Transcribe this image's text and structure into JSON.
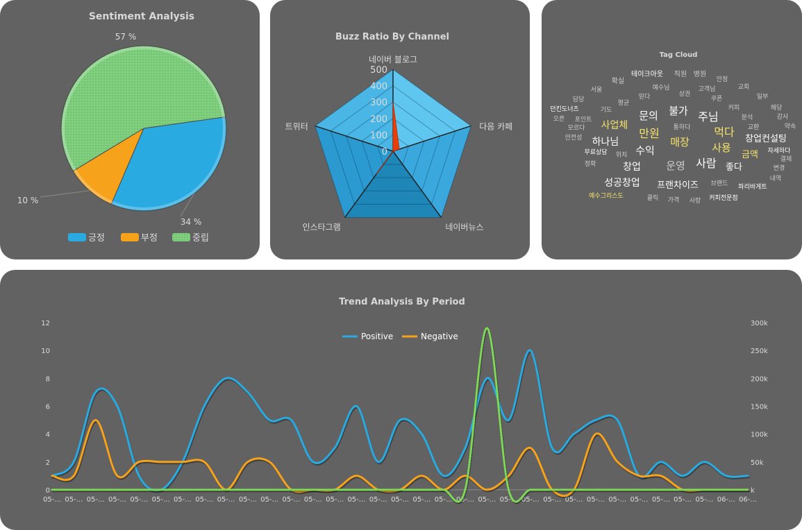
{
  "chart_data": [
    {
      "type": "pie",
      "title": "Sentiment Analysis",
      "slices": [
        {
          "name": "긍정",
          "value": 34,
          "label": "34 %",
          "color": "#29abe2"
        },
        {
          "name": "부정",
          "value": 10,
          "label": "10 %",
          "color": "#f7a21b"
        },
        {
          "name": "중립",
          "value": 57,
          "label": "57 %",
          "color": "#7fcf7f"
        }
      ],
      "legend": [
        "긍정",
        "부정",
        "중립"
      ],
      "legend_position": "bottom"
    },
    {
      "type": "radar",
      "title": "Buzz Ratio By Channel",
      "categories": [
        "네이버 블로그",
        "다음 카페",
        "네이버뉴스",
        "인스타그램",
        "트위터"
      ],
      "values": [
        300,
        40,
        0,
        170,
        0
      ],
      "radial_ticks": [
        "0",
        "100",
        "200",
        "300",
        "400",
        "500"
      ],
      "rmax": 500
    },
    {
      "type": "wordcloud",
      "title": "Tag Cloud",
      "words": [
        {
          "text": "테이크아웃",
          "size": 10,
          "color": "#ffffff"
        },
        {
          "text": "직원",
          "size": 10,
          "color": "#cccccc"
        },
        {
          "text": "병원",
          "size": 10,
          "color": "#cccccc"
        },
        {
          "text": "확실",
          "size": 10,
          "color": "#cccccc"
        },
        {
          "text": "예수님",
          "size": 9,
          "color": "#cccccc"
        },
        {
          "text": "안정",
          "size": 9,
          "color": "#cccccc"
        },
        {
          "text": "서울",
          "size": 9,
          "color": "#cccccc"
        },
        {
          "text": "믿다",
          "size": 9,
          "color": "#cccccc"
        },
        {
          "text": "상권",
          "size": 9,
          "color": "#cccccc"
        },
        {
          "text": "고객님",
          "size": 9,
          "color": "#cccccc"
        },
        {
          "text": "교회",
          "size": 9,
          "color": "#cccccc"
        },
        {
          "text": "담당",
          "size": 9,
          "color": "#cccccc"
        },
        {
          "text": "평균",
          "size": 9,
          "color": "#cccccc"
        },
        {
          "text": "쿠폰",
          "size": 9,
          "color": "#cccccc"
        },
        {
          "text": "일부",
          "size": 9,
          "color": "#cccccc"
        },
        {
          "text": "던킨도너츠",
          "size": 9,
          "color": "#ffffff"
        },
        {
          "text": "기도",
          "size": 9,
          "color": "#cccccc"
        },
        {
          "text": "커피",
          "size": 9,
          "color": "#cccccc"
        },
        {
          "text": "해당",
          "size": 9,
          "color": "#cccccc"
        },
        {
          "text": "오픈",
          "size": 9,
          "color": "#cccccc"
        },
        {
          "text": "포인트",
          "size": 9,
          "color": "#cccccc"
        },
        {
          "text": "문의",
          "size": 15,
          "color": "#ffffff"
        },
        {
          "text": "불가",
          "size": 15,
          "color": "#ffffff"
        },
        {
          "text": "주님",
          "size": 16,
          "color": "#ffffff"
        },
        {
          "text": "분석",
          "size": 9,
          "color": "#cccccc"
        },
        {
          "text": "감사",
          "size": 9,
          "color": "#cccccc"
        },
        {
          "text": "모르다",
          "size": 9,
          "color": "#cccccc"
        },
        {
          "text": "사업체",
          "size": 14,
          "color": "#f5e36a"
        },
        {
          "text": "통하다",
          "size": 9,
          "color": "#cccccc"
        },
        {
          "text": "교환",
          "size": 9,
          "color": "#cccccc"
        },
        {
          "text": "약속",
          "size": 9,
          "color": "#cccccc"
        },
        {
          "text": "안전성",
          "size": 9,
          "color": "#cccccc"
        },
        {
          "text": "만원",
          "size": 16,
          "color": "#f5e36a"
        },
        {
          "text": "먹다",
          "size": 16,
          "color": "#f5e36a"
        },
        {
          "text": "창업컨설팅",
          "size": 13,
          "color": "#ffffff"
        },
        {
          "text": "하나님",
          "size": 14,
          "color": "#ffffff"
        },
        {
          "text": "매장",
          "size": 15,
          "color": "#f5e36a"
        },
        {
          "text": "사용",
          "size": 15,
          "color": "#f5e36a"
        },
        {
          "text": "자세하다",
          "size": 9,
          "color": "#ffffff"
        },
        {
          "text": "무료상담",
          "size": 9,
          "color": "#ffffff"
        },
        {
          "text": "위치",
          "size": 9,
          "color": "#cccccc"
        },
        {
          "text": "수익",
          "size": 15,
          "color": "#ffffff"
        },
        {
          "text": "금액",
          "size": 13,
          "color": "#f5e36a"
        },
        {
          "text": "결제",
          "size": 9,
          "color": "#cccccc"
        },
        {
          "text": "정확",
          "size": 9,
          "color": "#cccccc"
        },
        {
          "text": "운영",
          "size": 15,
          "color": "#cccccc"
        },
        {
          "text": "사람",
          "size": 16,
          "color": "#ffffff"
        },
        {
          "text": "좋다",
          "size": 13,
          "color": "#ffffff"
        },
        {
          "text": "변경",
          "size": 9,
          "color": "#cccccc"
        },
        {
          "text": "창업",
          "size": 14,
          "color": "#ffffff"
        },
        {
          "text": "내역",
          "size": 9,
          "color": "#cccccc"
        },
        {
          "text": "성공창업",
          "size": 14,
          "color": "#ffffff"
        },
        {
          "text": "프랜차이즈",
          "size": 13,
          "color": "#ffffff"
        },
        {
          "text": "브랜드",
          "size": 9,
          "color": "#cccccc"
        },
        {
          "text": "파리바게트",
          "size": 9,
          "color": "#ffffff"
        },
        {
          "text": "예수그리스도",
          "size": 9,
          "color": "#f5e36a"
        },
        {
          "text": "클릭",
          "size": 9,
          "color": "#cccccc"
        },
        {
          "text": "가격",
          "size": 9,
          "color": "#cccccc"
        },
        {
          "text": "사랑",
          "size": 9,
          "color": "#cccccc"
        },
        {
          "text": "커피전문점",
          "size": 9,
          "color": "#ffffff"
        }
      ]
    },
    {
      "type": "line",
      "title": "Trend Analysis By Period",
      "x": [
        "05-...",
        "05-...",
        "05-...",
        "05-...",
        "05-...",
        "05-...",
        "05-...",
        "05-...",
        "05-...",
        "05-...",
        "05-...",
        "05-...",
        "05-...",
        "05-...",
        "05-...",
        "05-...",
        "05-...",
        "05-...",
        "05-...",
        "05-...",
        "05-...",
        "05-...",
        "05-...",
        "05-...",
        "05-...",
        "05-...",
        "05-...",
        "05-...",
        "05-...",
        "05-...",
        "05-...",
        "06-...",
        "06-..."
      ],
      "ylim": [
        0,
        12
      ],
      "yticks": [
        "0",
        "2",
        "4",
        "6",
        "8",
        "10",
        "12"
      ],
      "y2lim": [
        0,
        300000
      ],
      "y2ticks": [
        "k",
        "50k",
        "100k",
        "150k",
        "200k",
        "250k",
        "300k"
      ],
      "legend_position": "top-center",
      "series": [
        {
          "name": "Positive",
          "color": "#29abe2",
          "axis": "left",
          "values": [
            1,
            2,
            7,
            6,
            1,
            0,
            2,
            6,
            8,
            7,
            5,
            5,
            2,
            3,
            6,
            2,
            5,
            4,
            1,
            3,
            8,
            5,
            10,
            3,
            4,
            5,
            5,
            1,
            2,
            1,
            2,
            1,
            1
          ]
        },
        {
          "name": "Negative",
          "color": "#f7a21b",
          "axis": "left",
          "values": [
            1,
            1,
            5,
            1,
            2,
            2,
            2,
            2,
            0,
            2,
            2,
            0,
            0,
            0,
            1,
            0,
            0,
            1,
            0,
            1,
            0,
            1,
            3,
            0,
            0,
            4,
            2,
            1,
            1,
            0,
            0,
            0,
            0
          ]
        },
        {
          "name": "",
          "color": "#7ed957",
          "axis": "right",
          "dashed": true,
          "values": [
            0,
            0,
            0,
            0,
            0,
            0,
            0,
            0,
            0,
            0,
            0,
            0,
            0,
            0,
            0,
            0,
            0,
            0,
            0,
            0,
            290000,
            0,
            0,
            0,
            0,
            0,
            0,
            0,
            0,
            0,
            0,
            0,
            0
          ]
        }
      ]
    }
  ]
}
